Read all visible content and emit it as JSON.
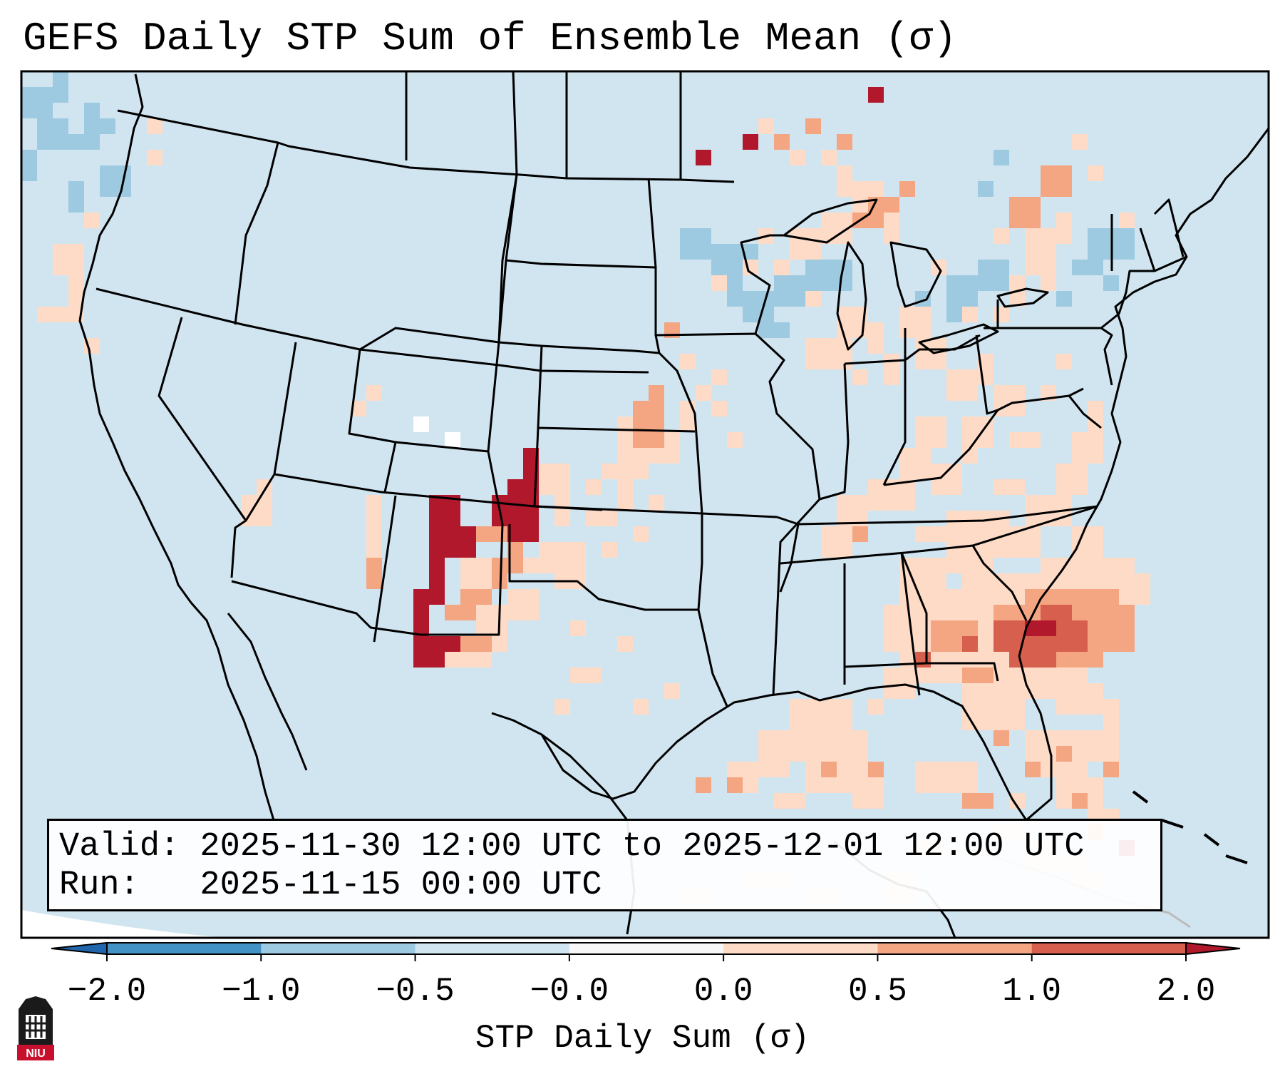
{
  "title": "GEFS Daily STP Sum of Ensemble Mean (σ)",
  "info": {
    "valid_line": "Valid: 2025-11-30 12:00 UTC to 2025-12-01 12:00 UTC",
    "run_line": "Run:   2025-11-15 00:00 UTC"
  },
  "colorbar": {
    "label": "STP Daily Sum (σ)",
    "ticks": [
      "−2.0",
      "−1.0",
      "−0.5",
      "−0.0",
      "0.0",
      "0.5",
      "1.0",
      "2.0"
    ],
    "bins": [
      {
        "range": "-2.0 to -1.0",
        "color": "#4292c6"
      },
      {
        "range": "-1.0 to -0.5",
        "color": "#9ecae1"
      },
      {
        "range": "-0.5 to -0.0",
        "color": "#d1e5f0"
      },
      {
        "range": "-0.0 to 0.0",
        "color": "#f7f7f7"
      },
      {
        "range": "0.0 to 0.5",
        "color": "#fddbc7"
      },
      {
        "range": "0.5 to 1.0",
        "color": "#f4a582"
      },
      {
        "range": "1.0 to 2.0",
        "color": "#d6604d"
      }
    ],
    "under_color": "#2166ac",
    "over_color": "#b2182b"
  },
  "map": {
    "background_color": "#d1e5f0",
    "projection": "Lambert Conformal",
    "region": "CONUS"
  },
  "logo": {
    "text": "NIU",
    "color": "#c8102e"
  }
}
